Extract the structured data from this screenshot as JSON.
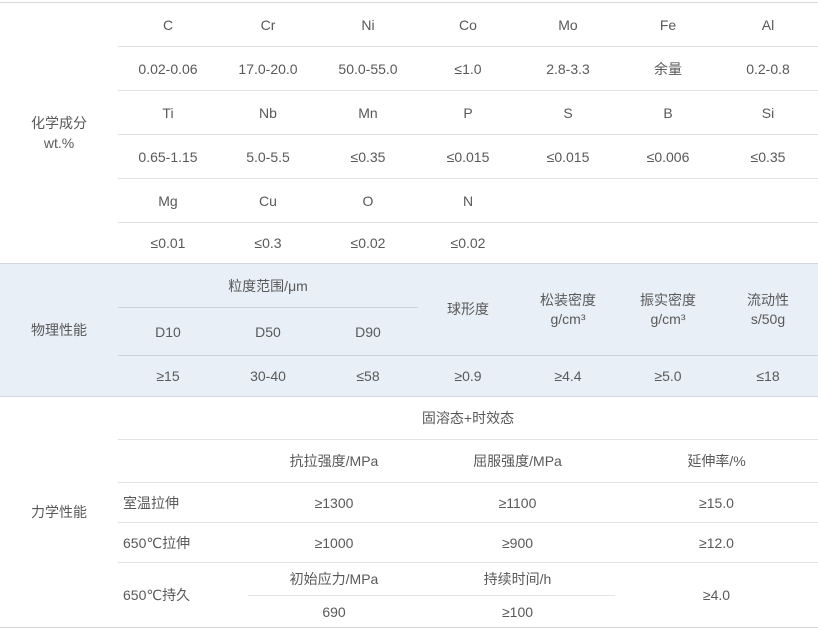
{
  "colors": {
    "section_highlight_bg": "#e9eff7",
    "border": "#d8d8d8",
    "inner_border": "#e3e3e3",
    "text": "#595959"
  },
  "sections": {
    "chemical": {
      "label_line1": "化学成分",
      "label_line2": "wt.%",
      "rows": [
        [
          "C",
          "Cr",
          "Ni",
          "Co",
          "Mo",
          "Fe",
          "Al"
        ],
        [
          "0.02-0.06",
          "17.0-20.0",
          "50.0-55.0",
          "≤1.0",
          "2.8-3.3",
          "余量",
          "0.2-0.8"
        ],
        [
          "Ti",
          "Nb",
          "Mn",
          "P",
          "S",
          "B",
          "Si"
        ],
        [
          "0.65-1.15",
          "5.0-5.5",
          "≤0.35",
          "≤0.015",
          "≤0.015",
          "≤0.006",
          "≤0.35"
        ],
        [
          "Mg",
          "Cu",
          "O",
          "N",
          "",
          "",
          ""
        ],
        [
          "≤0.01",
          "≤0.3",
          "≤0.02",
          "≤0.02",
          "",
          "",
          ""
        ]
      ]
    },
    "physical": {
      "label": "物理性能",
      "size_group_header": "粒度范围/μm",
      "size_headers": [
        "D10",
        "D50",
        "D90"
      ],
      "col_headers": [
        {
          "line1": "球形度",
          "line2": ""
        },
        {
          "line1": "松装密度",
          "line2": "g/cm³"
        },
        {
          "line1": "振实密度",
          "line2": "g/cm³"
        },
        {
          "line1": "流动性",
          "line2": "s/50g"
        }
      ],
      "values": [
        "≥15",
        "30-40",
        "≤58",
        "≥0.9",
        "≥4.4",
        "≥5.0",
        "≤18"
      ]
    },
    "mechanical": {
      "label": "力学性能",
      "state_header": "固溶态+时效态",
      "col_headers": [
        "抗拉强度/MPa",
        "屈服强度/MPa",
        "延伸率/%"
      ],
      "rows": [
        {
          "name": "室温拉伸",
          "a": "≥1300",
          "b": "≥1100",
          "c": "≥15.0"
        },
        {
          "name": "650℃拉伸",
          "a": "≥1000",
          "b": "≥900",
          "c": "≥12.0"
        }
      ],
      "endurance": {
        "name": "650℃持久",
        "a_header": "初始应力/MPa",
        "a_value": "690",
        "b_header": "持续时间/h",
        "b_value": "≥100",
        "c_value": "≥4.0"
      }
    }
  }
}
